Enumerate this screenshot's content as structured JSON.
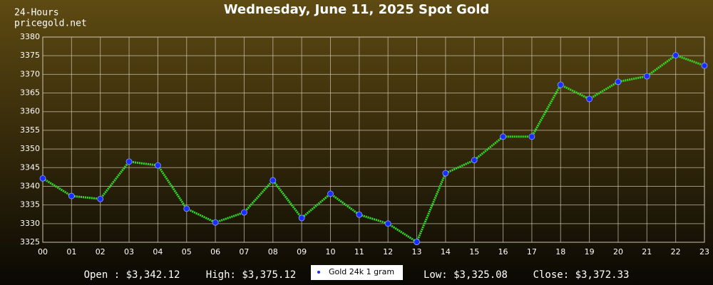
{
  "chart_data": {
    "type": "line",
    "title": "Wednesday, June 11, 2025 Spot Gold",
    "source_lines": [
      "24-Hours",
      "pricegold.net"
    ],
    "categories": [
      "00",
      "01",
      "02",
      "03",
      "04",
      "05",
      "06",
      "07",
      "08",
      "09",
      "10",
      "11",
      "12",
      "13",
      "14",
      "15",
      "16",
      "17",
      "18",
      "19",
      "20",
      "21",
      "22",
      "23"
    ],
    "series": [
      {
        "name": "Gold 24k 1 gram",
        "color": "#33dd22",
        "marker_color": "#1a2cff",
        "values": [
          3342.12,
          3337.4,
          3336.6,
          3346.6,
          3345.6,
          3334.0,
          3330.3,
          3333.0,
          3341.6,
          3331.5,
          3338.0,
          3332.4,
          3330.0,
          3325.08,
          3343.5,
          3347.0,
          3353.3,
          3353.3,
          3367.2,
          3363.4,
          3368.0,
          3369.5,
          3375.12,
          3372.33
        ]
      }
    ],
    "ylim": [
      3325,
      3380
    ],
    "yticks": [
      3325,
      3330,
      3335,
      3340,
      3345,
      3350,
      3355,
      3360,
      3365,
      3370,
      3375,
      3380
    ],
    "grid": true,
    "stats": [
      "Open : $3,342.12",
      "High: $3,375.12",
      "Low: $3,325.08",
      "Close: $3,372.33"
    ]
  }
}
